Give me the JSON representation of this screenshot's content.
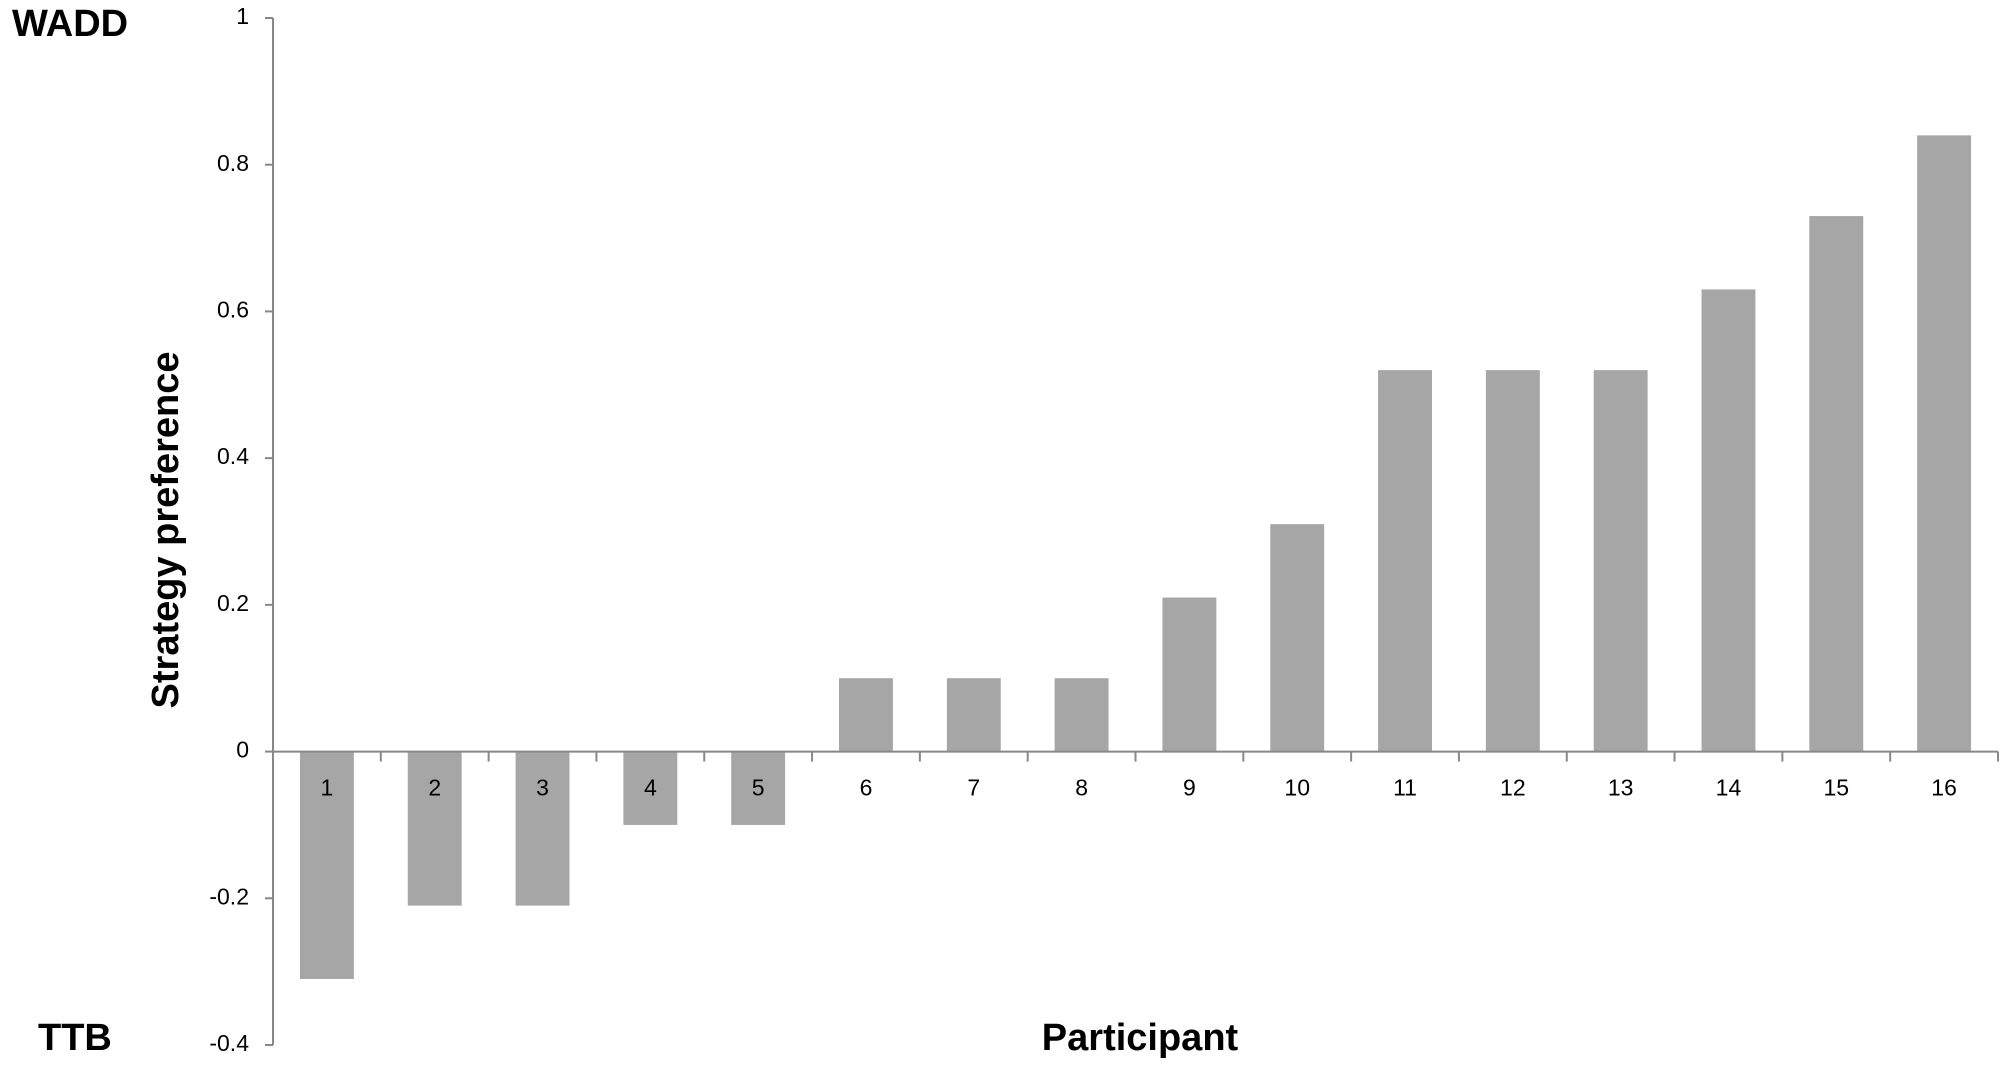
{
  "chart_data": {
    "type": "bar",
    "y_label": "Strategy preference",
    "x_label": "Participant",
    "annotations": [
      "WADD",
      "TTB"
    ],
    "categories": [
      "1",
      "2",
      "3",
      "4",
      "5",
      "6",
      "7",
      "8",
      "9",
      "10",
      "11",
      "12",
      "13",
      "14",
      "15",
      "16"
    ],
    "values": [
      -0.31,
      -0.21,
      -0.21,
      -0.1,
      -0.1,
      0.1,
      0.1,
      0.1,
      0.21,
      0.31,
      0.52,
      0.52,
      0.52,
      0.63,
      0.73,
      0.84
    ],
    "color": "#a6a6a6",
    "ylim": [
      -0.4,
      1
    ],
    "yticks": [
      -0.4,
      -0.2,
      0,
      0.2,
      0.4,
      0.6,
      0.8,
      1
    ],
    "grid": false
  }
}
